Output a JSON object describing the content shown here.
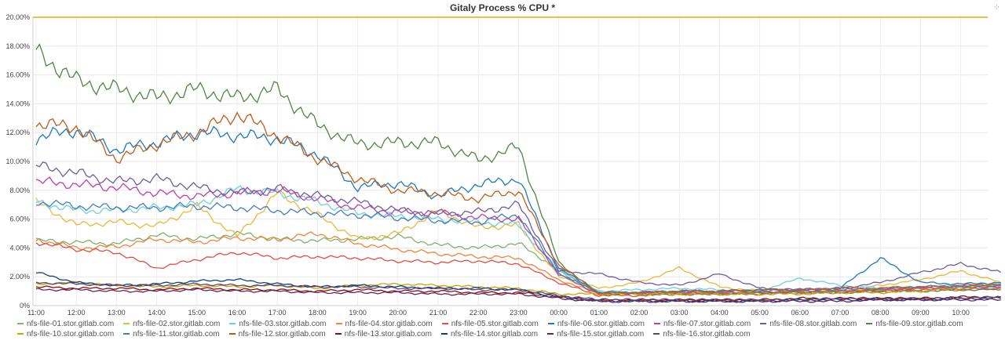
{
  "panel": {
    "title": "Gitaly Process % CPU *",
    "spinner_icon": "loading-spinner-icon"
  },
  "chart_data": {
    "type": "line",
    "title": "Gitaly Process % CPU *",
    "xlabel": "",
    "ylabel": "",
    "ylim": [
      0,
      20
    ],
    "y_ticks": [
      "0%",
      "2.00%",
      "4.00%",
      "6.00%",
      "8.00%",
      "10.00%",
      "12.00%",
      "14.00%",
      "16.00%",
      "18.00%",
      "20.00%"
    ],
    "x_ticks": [
      "11:00",
      "12:00",
      "13:00",
      "14:00",
      "15:00",
      "16:00",
      "17:00",
      "18:00",
      "19:00",
      "20:00",
      "21:00",
      "22:00",
      "23:00",
      "00:00",
      "01:00",
      "02:00",
      "03:00",
      "04:00",
      "05:00",
      "06:00",
      "07:00",
      "08:00",
      "09:00",
      "10:00"
    ],
    "x": [
      "11:00",
      "12:00",
      "13:00",
      "14:00",
      "15:00",
      "16:00",
      "17:00",
      "18:00",
      "19:00",
      "20:00",
      "21:00",
      "22:00",
      "23:00",
      "00:00",
      "01:00",
      "02:00",
      "03:00",
      "04:00",
      "05:00",
      "06:00",
      "07:00",
      "08:00",
      "09:00",
      "10:00",
      "10:50"
    ],
    "grid": true,
    "legend_position": "bottom",
    "threshold": {
      "value": 20,
      "color": "#e5ac0e"
    },
    "series": [
      {
        "name": "nfs-file-01.stor.gitlab.com",
        "color": "#7eb26d",
        "values": [
          4.5,
          4.4,
          4.3,
          4.9,
          4.6,
          5.0,
          4.6,
          4.5,
          4.6,
          4.8,
          4.2,
          4.0,
          4.3,
          2.5,
          0.8,
          0.9,
          1.0,
          0.9,
          0.9,
          1.0,
          1.0,
          1.1,
          1.2,
          1.3,
          1.4
        ]
      },
      {
        "name": "nfs-file-02.stor.gitlab.com",
        "color": "#eab839",
        "values": [
          7.2,
          5.6,
          5.8,
          5.5,
          6.9,
          4.8,
          7.8,
          6.3,
          4.6,
          5.0,
          6.6,
          5.4,
          5.6,
          2.0,
          1.2,
          1.6,
          2.6,
          1.3,
          1.0,
          0.9,
          1.0,
          1.4,
          1.8,
          2.4,
          1.6
        ]
      },
      {
        "name": "nfs-file-03.stor.gitlab.com",
        "color": "#6ed0e0",
        "values": [
          7.2,
          6.6,
          6.6,
          6.8,
          7.0,
          8.1,
          7.8,
          7.2,
          6.4,
          6.2,
          6.0,
          5.8,
          5.6,
          2.4,
          1.0,
          1.1,
          1.2,
          1.1,
          1.0,
          1.9,
          1.4,
          1.2,
          1.3,
          1.4,
          1.5
        ]
      },
      {
        "name": "nfs-file-04.stor.gitlab.com",
        "color": "#ef843c",
        "values": [
          4.6,
          4.0,
          4.1,
          4.6,
          4.4,
          4.7,
          4.6,
          5.0,
          4.3,
          3.9,
          3.6,
          3.4,
          3.3,
          1.8,
          0.8,
          0.9,
          0.9,
          0.9,
          0.9,
          1.0,
          1.0,
          1.1,
          1.2,
          1.2,
          1.3
        ]
      },
      {
        "name": "nfs-file-05.stor.gitlab.com",
        "color": "#e24d42",
        "values": [
          4.4,
          3.9,
          3.7,
          2.6,
          3.2,
          3.7,
          3.3,
          3.4,
          3.3,
          3.1,
          3.0,
          3.1,
          2.9,
          1.6,
          0.7,
          0.7,
          0.8,
          0.8,
          0.8,
          0.9,
          0.9,
          1.0,
          1.1,
          1.1,
          1.2
        ]
      },
      {
        "name": "nfs-file-06.stor.gitlab.com",
        "color": "#1f78c1",
        "values": [
          11.6,
          12.2,
          10.8,
          11.3,
          12.0,
          11.8,
          11.6,
          10.5,
          8.2,
          8.5,
          7.6,
          8.4,
          8.8,
          2.6,
          0.9,
          0.9,
          1.0,
          1.0,
          1.1,
          1.1,
          1.2,
          3.3,
          1.6,
          1.5,
          1.6
        ]
      },
      {
        "name": "nfs-file-07.stor.gitlab.com",
        "color": "#ba43a9",
        "values": [
          8.6,
          8.4,
          8.2,
          7.8,
          7.6,
          7.8,
          8.0,
          7.4,
          6.8,
          6.5,
          6.4,
          6.1,
          6.0,
          2.2,
          0.8,
          0.9,
          0.9,
          0.9,
          0.9,
          1.0,
          1.0,
          1.1,
          1.2,
          1.3,
          1.3
        ]
      },
      {
        "name": "nfs-file-08.stor.gitlab.com",
        "color": "#705da0",
        "values": [
          9.7,
          9.2,
          8.6,
          8.8,
          8.2,
          7.8,
          8.1,
          7.6,
          7.2,
          6.6,
          6.4,
          6.5,
          7.0,
          2.4,
          2.2,
          1.6,
          1.4,
          2.2,
          1.2,
          1.1,
          1.2,
          1.6,
          2.3,
          2.9,
          2.3
        ]
      },
      {
        "name": "nfs-file-09.stor.gitlab.com",
        "color": "#508642",
        "values": [
          17.6,
          15.6,
          15.0,
          14.4,
          15.0,
          14.4,
          15.0,
          12.5,
          11.2,
          11.3,
          11.3,
          10.1,
          11.0,
          3.0,
          0.8,
          0.8,
          0.8,
          0.8,
          0.9,
          0.9,
          0.9,
          1.0,
          1.0,
          1.1,
          1.1
        ]
      },
      {
        "name": "nfs-file-10.stor.gitlab.com",
        "color": "#cca300",
        "values": [
          1.5,
          1.6,
          1.4,
          1.3,
          1.4,
          1.3,
          1.4,
          1.2,
          1.4,
          1.5,
          1.4,
          1.3,
          1.2,
          0.8,
          0.8,
          0.8,
          0.8,
          0.8,
          0.8,
          0.8,
          0.9,
          0.9,
          1.0,
          1.2,
          1.5
        ]
      },
      {
        "name": "nfs-file-11.stor.gitlab.com",
        "color": "#447ebc",
        "values": [
          7.2,
          6.9,
          6.8,
          6.8,
          6.9,
          6.8,
          6.6,
          6.4,
          6.3,
          6.1,
          5.9,
          5.8,
          6.3,
          2.2,
          0.9,
          0.9,
          1.0,
          1.0,
          1.0,
          1.1,
          1.1,
          1.2,
          1.3,
          1.3,
          1.4
        ]
      },
      {
        "name": "nfs-file-12.stor.gitlab.com",
        "color": "#c15c17",
        "values": [
          12.6,
          12.4,
          10.2,
          11.2,
          12.0,
          13.3,
          11.8,
          10.2,
          8.8,
          8.0,
          7.8,
          7.4,
          8.0,
          2.8,
          0.9,
          0.9,
          1.0,
          1.0,
          1.1,
          1.1,
          1.2,
          1.2,
          1.3,
          1.4,
          1.5
        ]
      },
      {
        "name": "nfs-file-13.stor.gitlab.com",
        "color": "#890f02",
        "values": [
          1.3,
          1.2,
          1.2,
          1.1,
          1.2,
          1.1,
          1.1,
          1.0,
          1.1,
          1.0,
          1.0,
          0.9,
          0.9,
          0.6,
          0.4,
          0.4,
          0.4,
          0.4,
          0.4,
          0.5,
          0.5,
          0.5,
          0.5,
          0.6,
          0.6
        ]
      },
      {
        "name": "nfs-file-14.stor.gitlab.com",
        "color": "#0a437c",
        "values": [
          2.3,
          1.6,
          1.4,
          1.5,
          1.7,
          1.8,
          1.5,
          1.3,
          1.4,
          1.3,
          1.2,
          1.2,
          1.1,
          0.6,
          0.3,
          0.3,
          0.3,
          0.3,
          0.3,
          0.4,
          0.4,
          0.4,
          0.4,
          0.5,
          0.5
        ]
      },
      {
        "name": "nfs-file-15.stor.gitlab.com",
        "color": "#6d1f62",
        "values": [
          1.1,
          1.1,
          1.0,
          1.0,
          1.1,
          1.0,
          1.0,
          0.9,
          0.9,
          0.9,
          0.8,
          0.8,
          0.8,
          0.5,
          0.3,
          0.3,
          0.3,
          0.3,
          0.3,
          0.3,
          0.3,
          0.4,
          0.4,
          0.4,
          0.4
        ]
      },
      {
        "name": "nfs-file-16.stor.gitlab.com",
        "color": "#584477",
        "values": [
          1.6,
          1.5,
          1.4,
          1.4,
          1.5,
          1.4,
          1.4,
          1.3,
          1.3,
          1.2,
          1.2,
          1.1,
          1.1,
          0.7,
          0.4,
          0.4,
          0.4,
          0.4,
          0.4,
          0.4,
          0.5,
          0.5,
          0.5,
          0.5,
          0.6
        ]
      }
    ]
  }
}
